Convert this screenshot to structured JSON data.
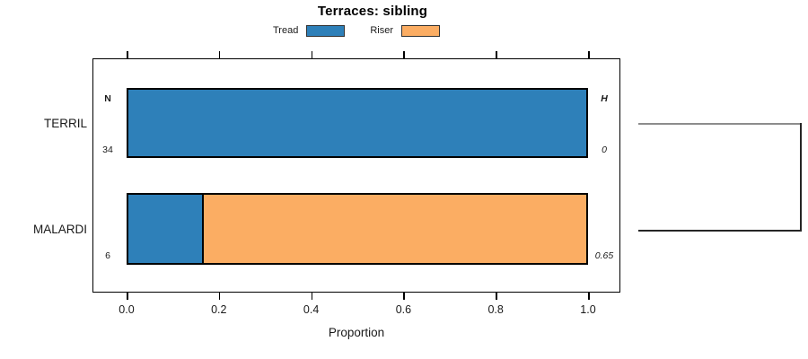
{
  "colors": {
    "tread": "#2e80b9",
    "riser": "#fbad63",
    "bar_border": "#000000",
    "box_border": "#000000",
    "branch_terril": "#8c8c8c",
    "branch_malardi": "#262626",
    "dendrogram_join": "#262626"
  },
  "chart_data": {
    "type": "bar",
    "orientation": "horizontal",
    "stacked": true,
    "title": "Terraces: sibling",
    "xlabel": "Proportion",
    "xlim": [
      0,
      1
    ],
    "grid": false,
    "legend_position": "top",
    "xticks": [
      0,
      0.2,
      0.4,
      0.6,
      0.8,
      1.0
    ],
    "xtick_labels": [
      "0.0",
      "0.2",
      "0.4",
      "0.6",
      "0.8",
      "1.0"
    ],
    "categories": [
      "TERRIL",
      "MALARDI"
    ],
    "series": [
      {
        "name": "Tread",
        "values": [
          1.0,
          0.165
        ]
      },
      {
        "name": "Riser",
        "values": [
          0.0,
          0.835
        ]
      }
    ],
    "annotations": {
      "n_header": "N",
      "h_header": "H"
    },
    "rows": [
      {
        "category": "TERRIL",
        "n": "34",
        "h": "0",
        "tread": 1.0,
        "riser": 0.0
      },
      {
        "category": "MALARDI",
        "n": "6",
        "h": "0.65",
        "tread": 0.165,
        "riser": 0.835
      }
    ],
    "dendrogram": {
      "joins": [
        "TERRIL",
        "MALARDI"
      ]
    }
  }
}
